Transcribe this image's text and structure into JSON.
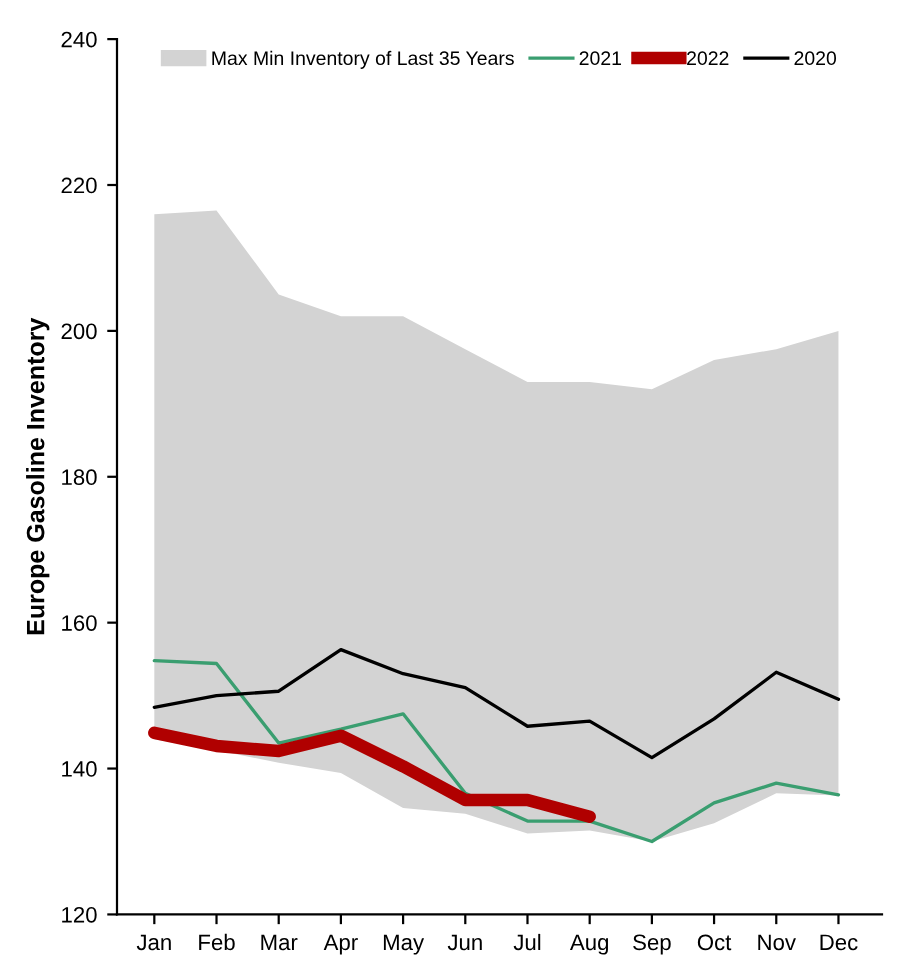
{
  "chart_data": {
    "type": "line",
    "ylabel": "Europe Gasoline Inventory",
    "categories": [
      "Jan",
      "Feb",
      "Mar",
      "Apr",
      "May",
      "Jun",
      "Jul",
      "Aug",
      "Sep",
      "Oct",
      "Nov",
      "Dec"
    ],
    "ylim": [
      120,
      240
    ],
    "yticks": [
      120,
      140,
      160,
      180,
      200,
      220,
      240
    ],
    "grid": false,
    "legend": "top",
    "marker": "none",
    "series": [
      {
        "name": "Max Min Inventory of Last 35 Years",
        "type": "line",
        "color": "#d3d3d3",
        "values": [
          null,
          null,
          null,
          null,
          null,
          null,
          null,
          null,
          null,
          null,
          null,
          null
        ],
        "upper": [
          216,
          216.5,
          205,
          202,
          202,
          197.5,
          193,
          193,
          192,
          196,
          197.5,
          200
        ],
        "lower": [
          144,
          142.5,
          140.8,
          139.4,
          134.6,
          133.8,
          131.1,
          131.5,
          130,
          132.5,
          136.6,
          136.3
        ]
      },
      {
        "name": "2021",
        "color": "#3a9e70",
        "values": [
          154.8,
          154.4,
          143.5,
          145.4,
          147.5,
          136.6,
          132.8,
          132.8,
          130,
          135.3,
          138,
          136.4
        ]
      },
      {
        "name": "2022",
        "color": "#b00000",
        "values": [
          144.9,
          143.1,
          142.4,
          144.5,
          140.3,
          135.7,
          135.7,
          133.4,
          null,
          null,
          null,
          null
        ]
      },
      {
        "name": "2020",
        "color": "#000000",
        "values": [
          148.4,
          150,
          150.6,
          156.3,
          153,
          151.1,
          145.8,
          146.5,
          141.5,
          146.8,
          153.2,
          149.5
        ]
      }
    ]
  }
}
